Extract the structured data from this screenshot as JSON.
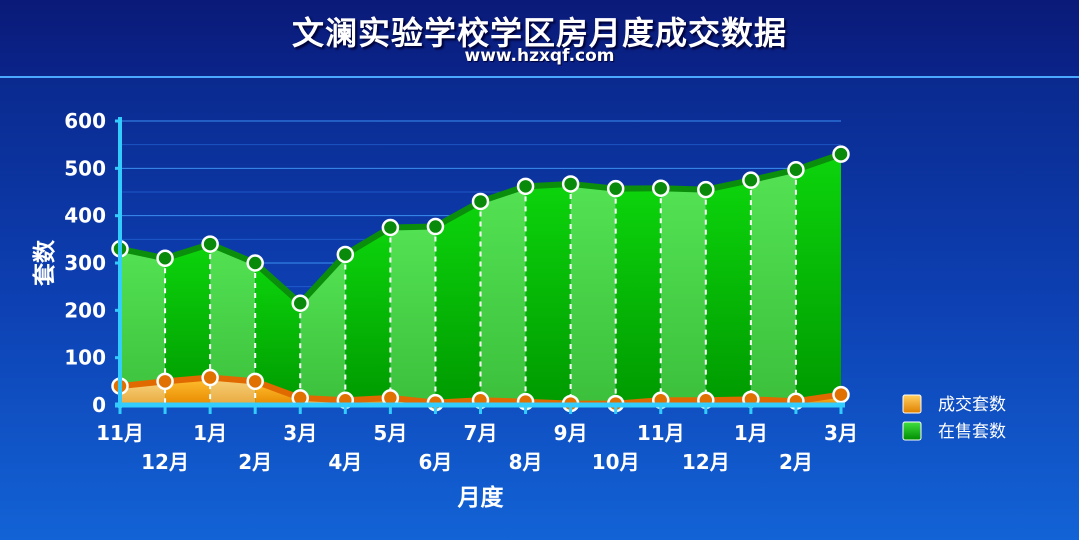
{
  "chart_data": {
    "type": "area",
    "title": "文澜实验学校学区房月度成交数据",
    "subtitle": "www.hzxqf.com",
    "xlabel": "月度",
    "ylabel": "套数",
    "ylim": [
      0,
      600
    ],
    "yticks": [
      0,
      100,
      200,
      300,
      400,
      500,
      600
    ],
    "categories": [
      "11月",
      "12月",
      "1月",
      "2月",
      "3月",
      "4月",
      "5月",
      "6月",
      "7月",
      "8月",
      "9月",
      "10月",
      "11月",
      "12月",
      "1月",
      "2月",
      "3月"
    ],
    "series": [
      {
        "name": "成交套数",
        "color": "#f5a000",
        "values": [
          40,
          50,
          58,
          50,
          15,
          10,
          15,
          5,
          10,
          7,
          3,
          3,
          10,
          10,
          12,
          8,
          22
        ]
      },
      {
        "name": "在售套数",
        "color": "#00b400",
        "values": [
          330,
          310,
          340,
          300,
          215,
          318,
          375,
          377,
          430,
          462,
          467,
          457,
          458,
          455,
          475,
          497,
          530
        ]
      }
    ],
    "legend_position": "right",
    "grid": true
  }
}
